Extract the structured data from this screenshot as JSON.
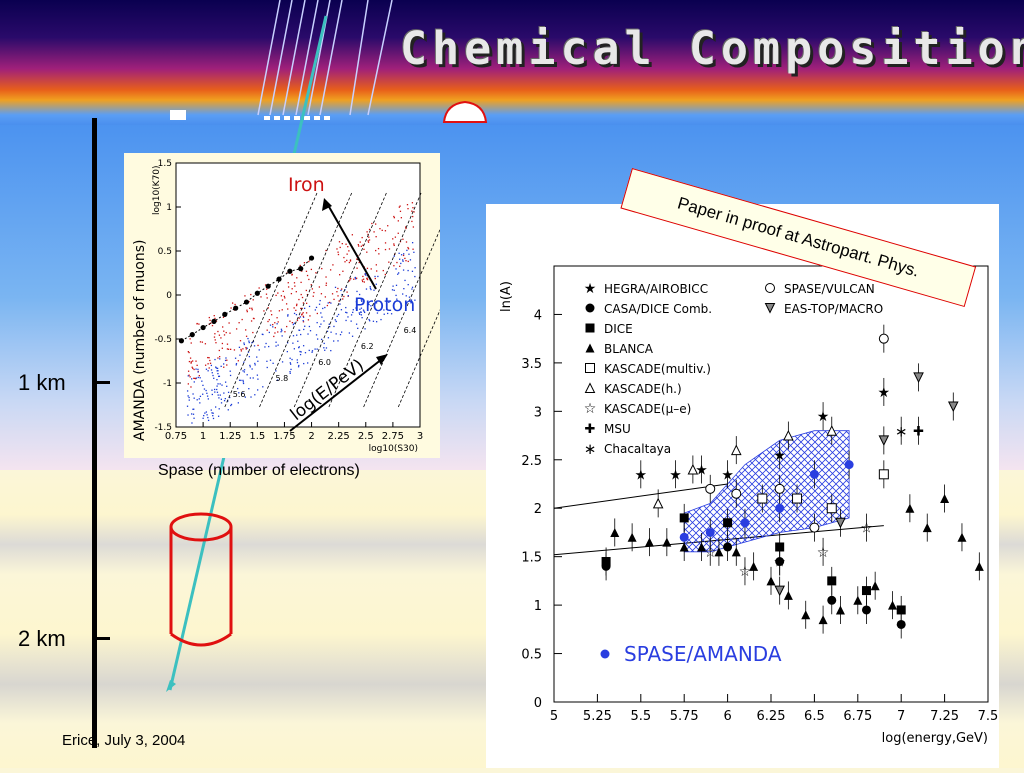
{
  "slide": {
    "title": "Chemical Composition",
    "footer": "Erice, July 3, 2004",
    "proof_note": "Paper in proof at Astropart. Phys."
  },
  "depth_labels": {
    "one_km": "1 km",
    "two_km": "2 km"
  },
  "colors": {
    "iron": "#cc1111",
    "proton": "#1a3bd6",
    "track": "#3cc0c0",
    "detector": "#e01010",
    "amanda_band": "#2a3ee0"
  },
  "chart_data": [
    {
      "type": "scatter",
      "xlabel": "log10(S30)",
      "ylabel": "log10(K70)",
      "outer_xlabel": "Spase (number of electrons)",
      "outer_ylabel": "AMANDA (number of muons)",
      "xlim": [
        0.75,
        3
      ],
      "ylim": [
        -1.5,
        1.5
      ],
      "x_ticks": [
        "0.75",
        "1",
        "1.25",
        "1.5",
        "1.75",
        "2",
        "2.25",
        "2.5",
        "2.75",
        "3"
      ],
      "y_ticks": [
        "-1.5",
        "-1",
        "-0.5",
        "0",
        "0.5",
        "1",
        "1.5"
      ],
      "annotations": {
        "iron": "Iron",
        "proton": "Proton",
        "energy_arrow": "log(E/PeV)"
      },
      "energy_lines": [
        "5.6",
        "5.8",
        "6.0",
        "6.2",
        "6.4",
        "6.6"
      ],
      "series": [
        {
          "name": "Iron",
          "color": "#cc1111"
        },
        {
          "name": "Proton",
          "color": "#1a3bd6"
        },
        {
          "points": [
            [
              0.8,
              -0.52
            ],
            [
              0.9,
              -0.45
            ],
            [
              1.0,
              -0.37
            ],
            [
              1.1,
              -0.3
            ],
            [
              1.2,
              -0.22
            ],
            [
              1.3,
              -0.15
            ],
            [
              1.4,
              -0.08
            ],
            [
              1.5,
              0.02
            ],
            [
              1.6,
              0.1
            ],
            [
              1.7,
              0.18
            ],
            [
              1.8,
              0.27
            ],
            [
              1.9,
              0.3
            ],
            [
              2.0,
              0.42
            ]
          ]
        }
      ]
    },
    {
      "type": "scatter",
      "xlabel": "log(energy,GeV)",
      "ylabel": "ln(A)",
      "xlim": [
        5,
        7.5
      ],
      "ylim": [
        0,
        4.5
      ],
      "x_ticks": [
        "5",
        "5.25",
        "5.5",
        "5.75",
        "6",
        "6.25",
        "6.5",
        "6.75",
        "7",
        "7.25",
        "7.5"
      ],
      "y_ticks": [
        "0",
        "0.5",
        "1",
        "1.5",
        "2",
        "2.5",
        "3",
        "3.5",
        "4"
      ],
      "legend": [
        {
          "name": "HEGRA/AIROBICC",
          "marker": "star-filled"
        },
        {
          "name": "CASA/DICE Comb.",
          "marker": "circle-filled"
        },
        {
          "name": "DICE",
          "marker": "square-filled"
        },
        {
          "name": "BLANCA",
          "marker": "triangle-filled"
        },
        {
          "name": "KASCADE(multiv.)",
          "marker": "square-open"
        },
        {
          "name": "KASCADE(h.)",
          "marker": "triangle-open"
        },
        {
          "name": "KASCADE(μ–e)",
          "marker": "star-open"
        },
        {
          "name": "MSU",
          "marker": "cross-open"
        },
        {
          "name": "Chacaltaya",
          "marker": "asterisk"
        },
        {
          "name": "SPASE/VULCAN",
          "marker": "circle-open"
        },
        {
          "name": "EAS-TOP/MACRO",
          "marker": "triangle-down"
        }
      ],
      "highlight_label": "SPASE/AMANDA",
      "series": [
        {
          "name": "HEGRA/AIROBICC",
          "points": [
            [
              5.5,
              2.35
            ],
            [
              5.7,
              2.35
            ],
            [
              5.85,
              2.4
            ],
            [
              6.0,
              2.35
            ],
            [
              6.3,
              2.55
            ],
            [
              6.55,
              2.95
            ],
            [
              6.9,
              3.2
            ]
          ]
        },
        {
          "name": "CASA/DICE Comb.",
          "points": [
            [
              5.3,
              1.4
            ],
            [
              6.0,
              1.6
            ],
            [
              6.3,
              1.45
            ],
            [
              6.6,
              1.05
            ],
            [
              6.8,
              0.95
            ],
            [
              7.0,
              0.8
            ]
          ]
        },
        {
          "name": "DICE",
          "points": [
            [
              5.3,
              1.45
            ],
            [
              5.75,
              1.9
            ],
            [
              6.0,
              1.85
            ],
            [
              6.3,
              1.6
            ],
            [
              6.6,
              1.25
            ],
            [
              6.8,
              1.15
            ],
            [
              7.0,
              0.95
            ]
          ]
        },
        {
          "name": "BLANCA",
          "points": [
            [
              5.35,
              1.75
            ],
            [
              5.45,
              1.7
            ],
            [
              5.55,
              1.65
            ],
            [
              5.65,
              1.65
            ],
            [
              5.75,
              1.6
            ],
            [
              5.85,
              1.6
            ],
            [
              5.95,
              1.55
            ],
            [
              6.05,
              1.55
            ],
            [
              6.15,
              1.4
            ],
            [
              6.25,
              1.25
            ],
            [
              6.35,
              1.1
            ],
            [
              6.45,
              0.9
            ],
            [
              6.55,
              0.85
            ],
            [
              6.65,
              0.95
            ],
            [
              6.75,
              1.05
            ],
            [
              6.85,
              1.2
            ],
            [
              6.95,
              1.0
            ],
            [
              7.05,
              2.0
            ],
            [
              7.15,
              1.8
            ],
            [
              7.25,
              2.1
            ],
            [
              7.35,
              1.7
            ],
            [
              7.45,
              1.4
            ]
          ]
        },
        {
          "name": "KASCADE(multiv.)",
          "points": [
            [
              6.2,
              2.1
            ],
            [
              6.4,
              2.1
            ],
            [
              6.6,
              2.0
            ],
            [
              6.9,
              2.35
            ]
          ]
        },
        {
          "name": "KASCADE(h.)",
          "points": [
            [
              5.6,
              2.05
            ],
            [
              5.8,
              2.4
            ],
            [
              6.05,
              2.6
            ],
            [
              6.35,
              2.75
            ],
            [
              6.6,
              2.8
            ]
          ]
        },
        {
          "name": "KASCADE(μ–e)",
          "points": [
            [
              5.9,
              1.55
            ],
            [
              6.1,
              1.35
            ],
            [
              6.3,
              1.45
            ],
            [
              6.55,
              1.55
            ],
            [
              6.8,
              1.8
            ]
          ]
        },
        {
          "name": "MSU",
          "points": [
            [
              7.1,
              2.8
            ]
          ]
        },
        {
          "name": "Chacaltaya",
          "points": [
            [
              7.0,
              2.8
            ]
          ]
        },
        {
          "name": "SPASE/VULCAN",
          "points": [
            [
              5.9,
              2.2
            ],
            [
              6.05,
              2.15
            ],
            [
              6.3,
              2.2
            ],
            [
              6.5,
              1.8
            ],
            [
              6.9,
              3.75
            ]
          ]
        },
        {
          "name": "EAS-TOP/MACRO",
          "points": [
            [
              6.3,
              1.15
            ],
            [
              6.65,
              1.85
            ],
            [
              6.9,
              2.7
            ],
            [
              7.1,
              3.35
            ],
            [
              7.3,
              3.05
            ]
          ]
        },
        {
          "name": "SPASE/AMANDA",
          "points": [
            [
              5.75,
              1.7
            ],
            [
              5.9,
              1.75
            ],
            [
              6.1,
              1.85
            ],
            [
              6.3,
              2.0
            ],
            [
              6.5,
              2.35
            ],
            [
              6.7,
              2.45
            ]
          ],
          "band_upper": [
            1.95,
            2.05,
            2.45,
            2.7,
            2.8,
            2.8
          ],
          "band_lower": [
            1.55,
            1.55,
            1.65,
            1.75,
            1.8,
            1.9
          ]
        }
      ]
    }
  ]
}
